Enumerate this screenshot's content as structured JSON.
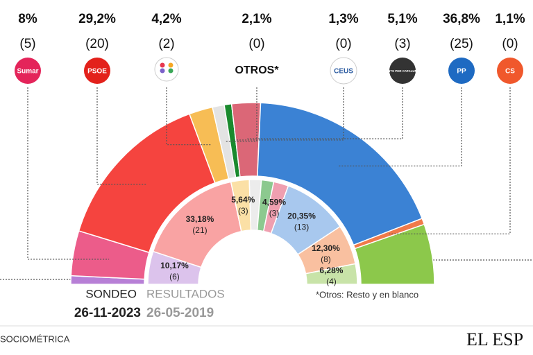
{
  "chart_data": {
    "type": "semi-donut",
    "outer": {
      "title": "SONDEO",
      "date": "26-11-2023",
      "values": [
        1.5,
        8,
        29.2,
        4.2,
        2.1,
        1.3,
        5.1,
        36.8,
        1.1,
        10.7
      ],
      "value_labels": [
        null,
        "8%",
        "29,2%",
        "4,2%",
        "2,1%",
        "1,3%",
        "5,1%",
        "36,8%",
        "1,1%",
        null
      ],
      "seat_labels": [
        null,
        "(5)",
        "(20)",
        "(2)",
        "(0)",
        "(0)",
        "(3)",
        "(25)",
        "(0)",
        null
      ],
      "logos": [
        null,
        "Sumar",
        "PSOE",
        null,
        "OTROS*",
        "CEUS",
        "JUNTS PER CATALUNYA",
        "PP",
        "CS",
        null
      ],
      "colors": [
        "#b77fd6",
        "#ec5c8a",
        "#f5443f",
        "#f7bd55",
        "#e3e3e3",
        "#1a8a2e",
        "#db6777",
        "#3b82d4",
        "#f07a4a",
        "#8cc84b"
      ]
    },
    "inner": {
      "title": "RESULTADOS",
      "date": "26-05-2019",
      "values": [
        10.17,
        33.18,
        5.64,
        3.7,
        3.79,
        4.59,
        20.35,
        12.3,
        6.28
      ],
      "value_labels": [
        "10,17%",
        "33,18%",
        "5,64%",
        null,
        null,
        "4,59%",
        "20,35%",
        "12,30%",
        "6,28%"
      ],
      "seat_labels": [
        "(6)",
        "(21)",
        "(3)",
        null,
        null,
        "(3)",
        "(13)",
        "(8)",
        "(4)"
      ],
      "colors": [
        "#dcc3ec",
        "#f9a3a3",
        "#fbe0a6",
        "#ececec",
        "#8cc98f",
        "#ef9fb0",
        "#a8c8ee",
        "#f9c0a0",
        "#c8e3a8"
      ]
    },
    "note": "*Otros: Resto y en blanco",
    "source": "SOCIOMÉTRICA",
    "brand": "EL ESP"
  }
}
